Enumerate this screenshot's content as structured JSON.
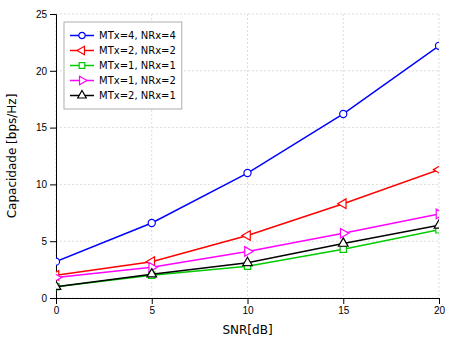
{
  "chart_data": {
    "type": "line",
    "xlabel": "SNR[dB]",
    "ylabel": "Capacidade [bps/Hz]",
    "x": [
      0,
      5,
      10,
      15,
      20
    ],
    "series": [
      {
        "name": "MTx=4, NRx=4",
        "color": "#0000ff",
        "marker": "circle",
        "values": [
          3.2,
          6.6,
          11.0,
          16.2,
          22.2
        ]
      },
      {
        "name": "MTx=2, NRx=2",
        "color": "#ff0000",
        "marker": "triangle-left",
        "values": [
          2.0,
          3.2,
          5.5,
          8.3,
          11.3
        ]
      },
      {
        "name": "MTx=1, NRx=1",
        "color": "#00cc00",
        "marker": "square",
        "values": [
          1.0,
          2.0,
          2.8,
          4.3,
          6.0
        ]
      },
      {
        "name": "MTx=1, NRx=2",
        "color": "#ff00ff",
        "marker": "triangle-right",
        "values": [
          1.8,
          2.7,
          4.1,
          5.7,
          7.4
        ]
      },
      {
        "name": "MTx=2, NRx=1",
        "color": "#000000",
        "marker": "triangle-up",
        "values": [
          1.0,
          2.1,
          3.1,
          4.8,
          6.4
        ]
      }
    ],
    "xlim": [
      0,
      20
    ],
    "ylim": [
      0,
      25
    ],
    "xticks": [
      0,
      5,
      10,
      15,
      20
    ],
    "yticks": [
      0,
      5,
      10,
      15,
      20,
      25
    ],
    "grid": true,
    "legend": "upper left"
  }
}
